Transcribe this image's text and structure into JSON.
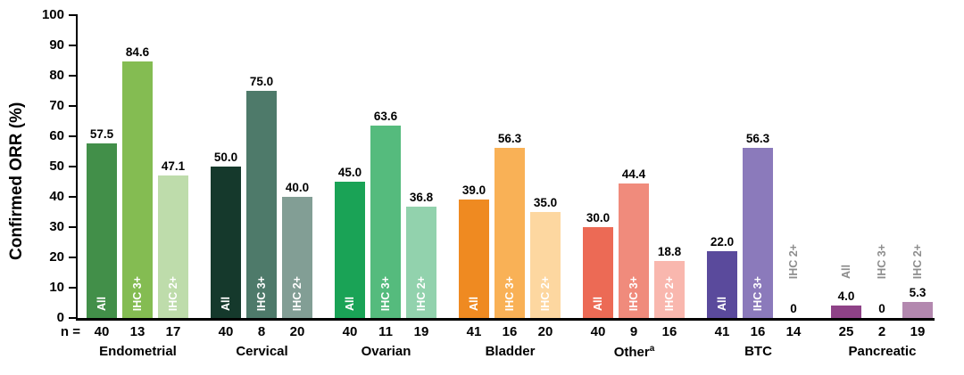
{
  "chart_data": {
    "type": "bar",
    "title": "",
    "ylabel": "Confirmed ORR (%)",
    "xlabel": "",
    "ylim": [
      0,
      100
    ],
    "y_ticks": [
      0,
      10,
      20,
      30,
      40,
      50,
      60,
      70,
      80,
      90,
      100
    ],
    "grid": false,
    "legend_position": "none (series labels rotated inside or above bars)",
    "n_prefix": "n =",
    "series_labels": [
      "All",
      "IHC 3+",
      "IHC 2+"
    ],
    "label_outside_threshold": 10,
    "colors": {
      "value_label": "#000000",
      "axis": "#000000",
      "inside_bar_label": "#ffffff",
      "outside_bar_label": "#8e8e8e",
      "background": "#ffffff"
    },
    "groups": [
      {
        "category": "Endometrial",
        "sup": "",
        "bars": [
          {
            "label": "All",
            "value": 57.5,
            "display": "57.5",
            "n": "40",
            "color": "#428f49"
          },
          {
            "label": "IHC 3+",
            "value": 84.6,
            "display": "84.6",
            "n": "13",
            "color": "#84bc52"
          },
          {
            "label": "IHC 2+",
            "value": 47.1,
            "display": "47.1",
            "n": "17",
            "color": "#bedcab"
          }
        ]
      },
      {
        "category": "Cervical",
        "sup": "",
        "bars": [
          {
            "label": "All",
            "value": 50.0,
            "display": "50.0",
            "n": "40",
            "color": "#15392c"
          },
          {
            "label": "IHC 3+",
            "value": 75.0,
            "display": "75.0",
            "n": "8",
            "color": "#4e7a6a"
          },
          {
            "label": "IHC 2+",
            "value": 40.0,
            "display": "40.0",
            "n": "20",
            "color": "#829e95"
          }
        ]
      },
      {
        "category": "Ovarian",
        "sup": "",
        "bars": [
          {
            "label": "All",
            "value": 45.0,
            "display": "45.0",
            "n": "40",
            "color": "#1aa356"
          },
          {
            "label": "IHC 3+",
            "value": 63.6,
            "display": "63.6",
            "n": "11",
            "color": "#55bb7d"
          },
          {
            "label": "IHC 2+",
            "value": 36.8,
            "display": "36.8",
            "n": "19",
            "color": "#92d2ad"
          }
        ]
      },
      {
        "category": "Bladder",
        "sup": "",
        "bars": [
          {
            "label": "All",
            "value": 39.0,
            "display": "39.0",
            "n": "41",
            "color": "#ef8a21"
          },
          {
            "label": "IHC 3+",
            "value": 56.3,
            "display": "56.3",
            "n": "16",
            "color": "#f9b156"
          },
          {
            "label": "IHC 2+",
            "value": 35.0,
            "display": "35.0",
            "n": "20",
            "color": "#fdd7a0"
          }
        ]
      },
      {
        "category": "Other",
        "sup": "a",
        "bars": [
          {
            "label": "All",
            "value": 30.0,
            "display": "30.0",
            "n": "40",
            "color": "#ec6a55"
          },
          {
            "label": "IHC 3+",
            "value": 44.4,
            "display": "44.4",
            "n": "9",
            "color": "#f08b7c"
          },
          {
            "label": "IHC 2+",
            "value": 18.8,
            "display": "18.8",
            "n": "16",
            "color": "#f9b7ae"
          }
        ]
      },
      {
        "category": "BTC",
        "sup": "",
        "bars": [
          {
            "label": "All",
            "value": 22.0,
            "display": "22.0",
            "n": "41",
            "color": "#5a4a9c"
          },
          {
            "label": "IHC 3+",
            "value": 56.3,
            "display": "56.3",
            "n": "16",
            "color": "#8b7abb"
          },
          {
            "label": "IHC 2+",
            "value": 0,
            "display": "0",
            "n": "14",
            "color": null
          }
        ]
      },
      {
        "category": "Pancreatic",
        "sup": "",
        "bars": [
          {
            "label": "All",
            "value": 4.0,
            "display": "4.0",
            "n": "25",
            "color": "#8e4287"
          },
          {
            "label": "IHC 3+",
            "value": 0,
            "display": "0",
            "n": "2",
            "color": null
          },
          {
            "label": "IHC 2+",
            "value": 5.3,
            "display": "5.3",
            "n": "19",
            "color": "#b388af"
          }
        ]
      }
    ]
  }
}
